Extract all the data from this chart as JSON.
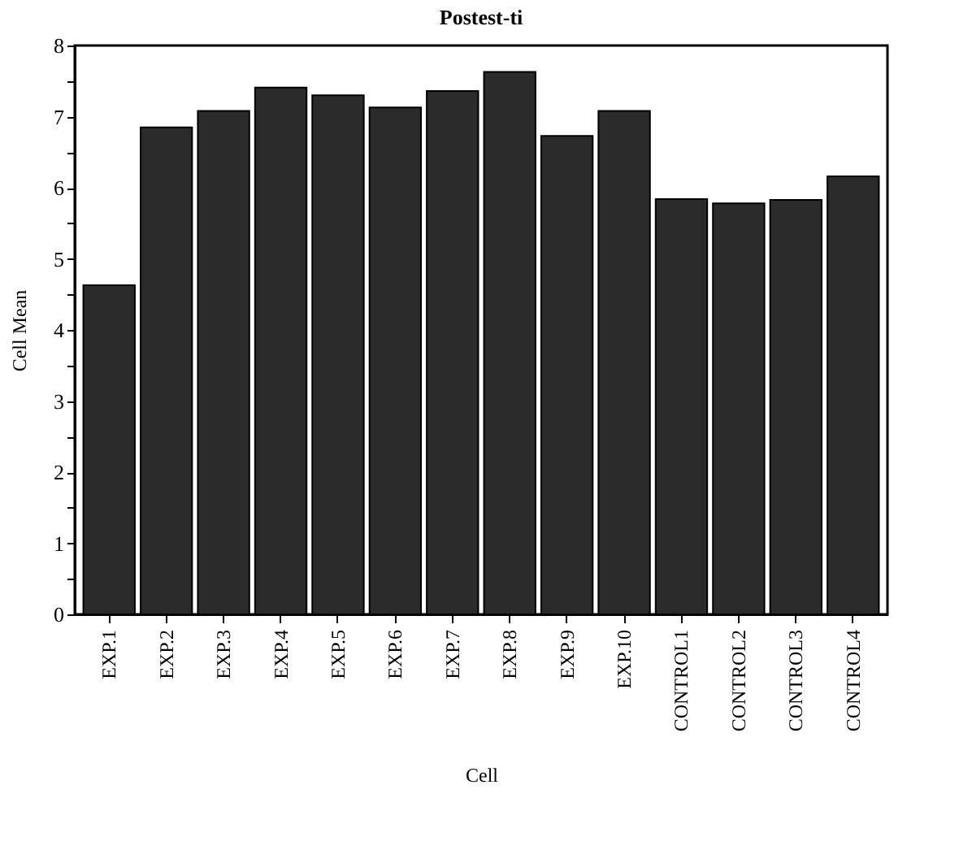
{
  "chart_data": {
    "type": "bar",
    "title": "Postest-ti",
    "xlabel": "Cell",
    "ylabel": "Cell Mean",
    "categories": [
      "EXP.1",
      "EXP.2",
      "EXP.3",
      "EXP.4",
      "EXP.5",
      "EXP.6",
      "EXP.7",
      "EXP.8",
      "EXP.9",
      "EXP.10",
      "CONTROL1",
      "CONTROL2",
      "CONTROL3",
      "CONTROL4"
    ],
    "values": [
      4.63,
      6.85,
      7.08,
      7.41,
      7.3,
      7.13,
      7.36,
      7.63,
      6.73,
      7.08,
      5.84,
      5.78,
      5.83,
      6.16
    ],
    "color": "#2b2b2b",
    "ylim": [
      0,
      8
    ],
    "yticks": [
      0,
      {
        "value": 0.5,
        "label": null
      },
      1,
      {
        "value": 1.5,
        "label": null
      },
      2,
      {
        "value": 2.5,
        "label": null
      },
      3,
      {
        "value": 3.5,
        "label": null
      },
      4,
      {
        "value": 4.5,
        "label": null
      },
      5,
      {
        "value": 5.5,
        "label": null
      },
      6,
      {
        "value": 6.5,
        "label": null
      },
      7,
      {
        "value": 7.5,
        "label": null
      },
      8
    ],
    "grid": false
  }
}
